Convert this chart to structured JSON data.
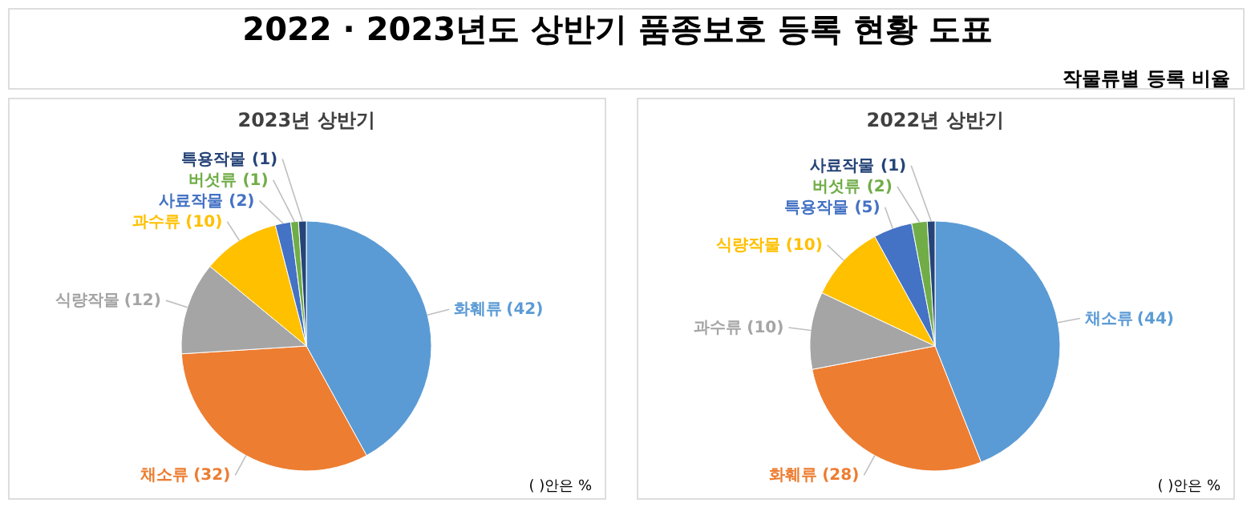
{
  "chart_data": [
    {
      "type": "other",
      "title": "2022 · 2023년도 상반기 품종보호 등록 현황 도표",
      "subtitle": "작물류별 등록 비율"
    },
    {
      "type": "pie",
      "title": "2023년 상반기",
      "categories": [
        "화훼류",
        "채소류",
        "식량작물",
        "과수류",
        "사료작물",
        "버섯류",
        "특용작물"
      ],
      "values": [
        42,
        32,
        12,
        10,
        2,
        1,
        1
      ],
      "value_labels": [
        "(42)",
        "(32)",
        "(12)",
        "(10)",
        "(2)",
        "(1)",
        "(1)"
      ],
      "colors": [
        "#5b9bd5",
        "#ed7d31",
        "#a5a5a5",
        "#ffc000",
        "#4472c4",
        "#70ad47",
        "#264478"
      ],
      "annotations": [
        "( )안은 %"
      ]
    },
    {
      "type": "pie",
      "title": "2022년 상반기",
      "categories": [
        "채소류",
        "화훼류",
        "과수류",
        "식량작물",
        "특용작물",
        "버섯류",
        "사료작물"
      ],
      "values": [
        44,
        28,
        10,
        10,
        5,
        2,
        1
      ],
      "value_labels": [
        "(44)",
        "(28)",
        "(10)",
        "(10)",
        "(5)",
        "(2)",
        "(1)"
      ],
      "colors": [
        "#5b9bd5",
        "#ed7d31",
        "#a5a5a5",
        "#ffc000",
        "#4472c4",
        "#70ad47",
        "#264478"
      ],
      "annotations": [
        "( )안은 %"
      ]
    }
  ]
}
